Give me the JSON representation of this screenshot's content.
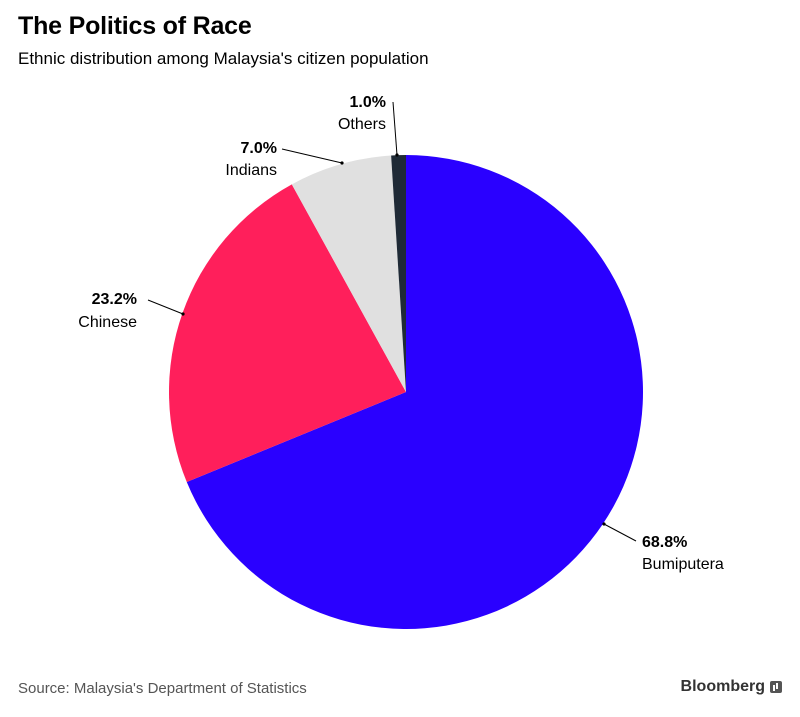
{
  "header": {
    "title": "The Politics of Race",
    "subtitle": "Ethnic distribution among Malaysia's citizen population"
  },
  "chart_data": {
    "type": "pie",
    "title": "The Politics of Race",
    "subtitle": "Ethnic distribution among Malaysia's citizen population",
    "start_angle_deg": 0,
    "direction": "clockwise",
    "slices": [
      {
        "name": "Bumiputera",
        "value": 68.8,
        "label": "68.8%",
        "color": "#2a00ff"
      },
      {
        "name": "Chinese",
        "value": 23.2,
        "label": "23.2%",
        "color": "#ff1f5b"
      },
      {
        "name": "Indians",
        "value": 7.0,
        "label": "7.0%",
        "color": "#e0e0e0"
      },
      {
        "name": "Others",
        "value": 1.0,
        "label": "1.0%",
        "color": "#1f2a36"
      }
    ]
  },
  "footer": {
    "source": "Source: Malaysia's Department of Statistics",
    "brand": "Bloomberg"
  }
}
